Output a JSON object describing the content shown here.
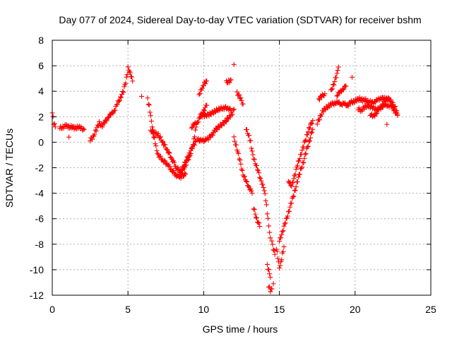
{
  "chart_data": {
    "type": "scatter",
    "title": "Day 077 of 2024, Sidereal Day-to-day VTEC variation (SDTVAR) for receiver bshm",
    "xlabel": "GPS time / hours",
    "ylabel": "SDTVAR / TECUs",
    "xlim": [
      0,
      25
    ],
    "ylim": [
      -12,
      8
    ],
    "xticks": [
      "0",
      "5",
      "10",
      "15",
      "20",
      "25"
    ],
    "yticks": [
      "-12",
      "-10",
      "-8",
      "-6",
      "-4",
      "-2",
      "0",
      "2",
      "4",
      "6",
      "8"
    ],
    "grid": true,
    "marker": "plus",
    "colors": {
      "points": "#ff0000",
      "grid": "#b0b0b0",
      "axes": "#000000"
    },
    "series": [
      {
        "name": "SDTVAR",
        "segments": [
          [
            [
              0.0,
              2.3
            ],
            [
              0.1,
              1.5
            ],
            [
              0.2,
              1.2
            ]
          ],
          [
            [
              0.5,
              1.1
            ],
            [
              0.7,
              1.2
            ],
            [
              0.9,
              1.3
            ],
            [
              1.1,
              1.2
            ],
            [
              1.3,
              1.2
            ],
            [
              1.5,
              1.1
            ],
            [
              1.7,
              1.2
            ],
            [
              1.9,
              1.1
            ],
            [
              2.1,
              1.0
            ]
          ],
          [
            [
              1.1,
              0.4
            ]
          ],
          [
            [
              2.5,
              0.2
            ],
            [
              2.7,
              0.4
            ],
            [
              2.9,
              1.0
            ],
            [
              3.1,
              1.5
            ],
            [
              3.3,
              1.3
            ],
            [
              3.5,
              1.6
            ],
            [
              3.7,
              2.0
            ],
            [
              3.9,
              2.2
            ],
            [
              4.1,
              2.5
            ],
            [
              4.3,
              3.0
            ],
            [
              4.5,
              3.5
            ],
            [
              4.7,
              4.0
            ],
            [
              4.9,
              5.0
            ],
            [
              5.0,
              5.8
            ],
            [
              5.1,
              5.5
            ],
            [
              5.2,
              5.2
            ],
            [
              5.3,
              4.8
            ]
          ],
          [
            [
              5.9,
              3.6
            ]
          ],
          [
            [
              6.3,
              3.4
            ],
            [
              6.4,
              2.8
            ],
            [
              6.5,
              2.0
            ],
            [
              6.6,
              1.2
            ],
            [
              6.7,
              0.5
            ],
            [
              6.8,
              0.0
            ],
            [
              6.9,
              -0.6
            ],
            [
              7.0,
              -1.0
            ],
            [
              7.3,
              -1.4
            ],
            [
              7.6,
              -1.7
            ],
            [
              7.9,
              -2.2
            ],
            [
              8.2,
              -2.6
            ],
            [
              8.5,
              -2.7
            ],
            [
              8.8,
              -2.5
            ]
          ],
          [
            [
              6.5,
              1.0
            ],
            [
              6.6,
              0.8
            ],
            [
              6.8,
              0.7
            ],
            [
              7.0,
              0.6
            ],
            [
              7.3,
              0.0
            ],
            [
              7.6,
              -0.6
            ],
            [
              7.9,
              -1.3
            ],
            [
              8.2,
              -2.0
            ],
            [
              8.5,
              -2.3
            ],
            [
              8.8,
              -1.5
            ],
            [
              9.1,
              -0.8
            ],
            [
              9.3,
              -0.3
            ],
            [
              9.5,
              0.1
            ]
          ],
          [
            [
              8.5,
              -2.4
            ],
            [
              8.8,
              -1.8
            ],
            [
              9.1,
              -1.0
            ],
            [
              9.3,
              -0.2
            ],
            [
              9.4,
              0.5
            ],
            [
              9.5,
              1.2
            ]
          ],
          [
            [
              9.2,
              1.2
            ],
            [
              9.4,
              1.4
            ],
            [
              9.6,
              1.6
            ],
            [
              9.8,
              2.0
            ],
            [
              10.0,
              2.5
            ],
            [
              10.2,
              2.9
            ]
          ],
          [
            [
              9.7,
              3.8
            ],
            [
              9.9,
              4.2
            ],
            [
              10.0,
              4.5
            ],
            [
              10.1,
              4.7
            ],
            [
              10.2,
              4.8
            ]
          ],
          [
            [
              9.8,
              2.1
            ],
            [
              10.1,
              2.1
            ],
            [
              10.4,
              2.2
            ],
            [
              10.7,
              2.4
            ],
            [
              11.0,
              2.6
            ],
            [
              11.3,
              2.7
            ],
            [
              11.6,
              2.7
            ],
            [
              11.8,
              2.5
            ]
          ],
          [
            [
              9.6,
              0.2
            ],
            [
              9.9,
              0.1
            ],
            [
              10.2,
              0.2
            ],
            [
              10.5,
              0.5
            ],
            [
              10.8,
              1.0
            ],
            [
              11.1,
              1.3
            ],
            [
              11.4,
              1.6
            ],
            [
              11.7,
              2.0
            ],
            [
              11.9,
              2.3
            ],
            [
              12.0,
              2.6
            ]
          ],
          [
            [
              12.0,
              6.1
            ]
          ],
          [
            [
              11.5,
              4.7
            ],
            [
              11.7,
              4.8
            ],
            [
              11.8,
              4.9
            ]
          ],
          [
            [
              12.2,
              3.9
            ],
            [
              12.4,
              3.5
            ],
            [
              12.6,
              3.0
            ]
          ],
          [
            [
              12.0,
              0.3
            ],
            [
              12.2,
              -0.5
            ],
            [
              12.4,
              -1.5
            ],
            [
              12.6,
              -2.5
            ],
            [
              12.8,
              -3.1
            ],
            [
              13.0,
              -3.5
            ],
            [
              13.2,
              -4.0
            ]
          ],
          [
            [
              12.8,
              1.0
            ],
            [
              13.0,
              0.5
            ],
            [
              13.1,
              0.0
            ],
            [
              13.2,
              -0.8
            ],
            [
              13.4,
              -1.6
            ],
            [
              13.6,
              -2.3
            ],
            [
              13.8,
              -3.0
            ],
            [
              14.0,
              -3.8
            ],
            [
              14.1,
              -4.5
            ],
            [
              14.2,
              -5.5
            ],
            [
              14.3,
              -6.5
            ],
            [
              14.4,
              -7.5
            ]
          ],
          [
            [
              13.3,
              -5.2
            ],
            [
              13.5,
              -6.0
            ],
            [
              13.7,
              -6.6
            ]
          ],
          [
            [
              14.5,
              -7.8
            ],
            [
              14.6,
              -8.4
            ],
            [
              14.7,
              -8.8
            ]
          ],
          [
            [
              14.2,
              -9.7
            ],
            [
              14.3,
              -10.1
            ],
            [
              14.4,
              -10.6
            ]
          ],
          [
            [
              14.3,
              -11.3
            ],
            [
              14.4,
              -11.6
            ],
            [
              14.5,
              -11.5
            ]
          ],
          [
            [
              14.6,
              -11.1
            ]
          ],
          [
            [
              14.8,
              -8.3
            ],
            [
              14.9,
              -9.0
            ],
            [
              15.0,
              -9.8
            ],
            [
              15.1,
              -9.4
            ],
            [
              15.2,
              -8.8
            ],
            [
              15.3,
              -8.2
            ]
          ],
          [
            [
              15.0,
              -7.8
            ],
            [
              15.2,
              -7.0
            ],
            [
              15.4,
              -6.3
            ],
            [
              15.6,
              -5.5
            ],
            [
              15.8,
              -4.7
            ],
            [
              16.0,
              -3.9
            ],
            [
              16.2,
              -3.0
            ],
            [
              16.4,
              -2.2
            ],
            [
              16.6,
              -1.5
            ],
            [
              16.8,
              -0.6
            ],
            [
              17.0,
              0.2
            ],
            [
              17.2,
              1.0
            ]
          ],
          [
            [
              15.6,
              -3.0
            ],
            [
              15.8,
              -3.5
            ],
            [
              16.0,
              -2.6
            ],
            [
              16.2,
              -1.8
            ],
            [
              16.4,
              -1.0
            ],
            [
              16.6,
              -0.3
            ],
            [
              16.8,
              0.5
            ],
            [
              17.0,
              1.2
            ],
            [
              17.2,
              1.7
            ]
          ],
          [
            [
              17.5,
              1.5
            ],
            [
              17.7,
              2.0
            ],
            [
              17.9,
              2.5
            ],
            [
              18.1,
              2.7
            ],
            [
              18.3,
              2.9
            ],
            [
              18.5,
              3.0
            ],
            [
              18.7,
              3.1
            ],
            [
              18.9,
              3.1
            ],
            [
              19.1,
              3.0
            ],
            [
              19.3,
              3.0
            ],
            [
              19.5,
              2.9
            ],
            [
              19.7,
              3.1
            ],
            [
              19.9,
              3.2
            ],
            [
              20.1,
              3.3
            ],
            [
              20.3,
              3.4
            ],
            [
              20.5,
              3.3
            ],
            [
              20.7,
              3.3
            ],
            [
              20.9,
              3.2
            ],
            [
              21.1,
              3.1
            ],
            [
              21.3,
              3.2
            ],
            [
              21.5,
              3.3
            ],
            [
              21.7,
              3.5
            ],
            [
              21.9,
              3.4
            ],
            [
              22.1,
              3.4
            ],
            [
              22.3,
              3.3
            ],
            [
              22.5,
              3.0
            ],
            [
              22.7,
              2.6
            ],
            [
              22.8,
              2.2
            ]
          ],
          [
            [
              18.4,
              4.0
            ],
            [
              18.6,
              4.6
            ],
            [
              18.8,
              5.3
            ],
            [
              18.9,
              5.9
            ]
          ],
          [
            [
              18.8,
              3.7
            ],
            [
              19.0,
              3.9
            ],
            [
              19.2,
              4.2
            ],
            [
              19.4,
              4.4
            ]
          ],
          [
            [
              17.6,
              3.4
            ],
            [
              17.8,
              3.6
            ],
            [
              18.0,
              3.8
            ]
          ],
          [
            [
              19.8,
              5.1
            ]
          ],
          [
            [
              20.2,
              2.6
            ],
            [
              20.4,
              2.5
            ],
            [
              20.6,
              2.7
            ],
            [
              20.8,
              2.9
            ],
            [
              21.0,
              2.8
            ],
            [
              21.2,
              2.7
            ],
            [
              21.4,
              2.6
            ],
            [
              21.6,
              2.6
            ],
            [
              21.8,
              2.8
            ],
            [
              22.0,
              2.9
            ],
            [
              22.2,
              2.9
            ],
            [
              22.4,
              2.8
            ],
            [
              22.6,
              2.5
            ],
            [
              22.8,
              2.1
            ]
          ],
          [
            [
              21.0,
              2.2
            ],
            [
              21.2,
              2.0
            ],
            [
              21.4,
              2.3
            ],
            [
              21.6,
              2.6
            ],
            [
              21.8,
              3.0
            ],
            [
              22.0,
              3.3
            ],
            [
              22.2,
              3.5
            ]
          ],
          [
            [
              22.1,
              1.4
            ]
          ]
        ]
      }
    ]
  }
}
